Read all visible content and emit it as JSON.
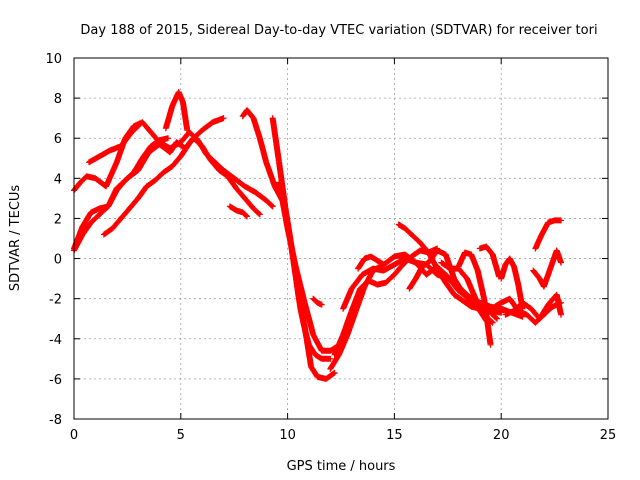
{
  "chart_data": {
    "type": "scatter",
    "title": "Day 188 of 2015, Sidereal Day-to-day VTEC variation (SDTVAR) for receiver tori",
    "xlabel": "GPS time / hours",
    "ylabel": "SDTVAR / TECUs",
    "xlim": [
      0,
      25
    ],
    "ylim": [
      -8,
      10
    ],
    "xticks": [
      0,
      5,
      10,
      15,
      20,
      25
    ],
    "yticks": [
      -8,
      -6,
      -4,
      -2,
      0,
      2,
      4,
      6,
      8,
      10
    ],
    "xtick_labels": [
      "0",
      "5",
      "10",
      "15",
      "20",
      "25"
    ],
    "ytick_labels": [
      "-8",
      "-6",
      "-4",
      "-2",
      "0",
      "2",
      "4",
      "6",
      "8",
      "10"
    ],
    "grid": true,
    "marker": "plus",
    "color": "#ff0000",
    "series": [
      {
        "x": [
          0.0,
          0.3,
          0.6,
          1.0,
          1.5,
          2.0,
          2.4,
          2.8,
          3.2,
          3.6,
          4.0,
          4.5,
          5.0,
          5.4,
          5.8,
          6.2,
          6.6,
          7.0,
          7.5,
          8.0,
          8.5,
          9.0,
          9.3
        ],
        "y": [
          3.4,
          3.8,
          4.1,
          4.0,
          3.6,
          4.8,
          6.0,
          6.6,
          6.8,
          6.3,
          5.8,
          5.5,
          5.8,
          6.3,
          5.9,
          5.2,
          4.8,
          4.4,
          4.0,
          3.6,
          3.3,
          2.9,
          2.6
        ]
      },
      {
        "x": [
          0.0,
          0.4,
          0.8,
          1.2,
          1.6,
          2.0,
          2.5,
          3.0,
          3.5,
          4.0,
          4.5,
          4.8,
          5.2,
          5.6,
          6.0,
          6.4,
          6.8,
          7.2,
          7.6,
          8.0,
          8.4,
          8.7
        ],
        "y": [
          0.5,
          1.6,
          2.3,
          2.5,
          2.6,
          3.5,
          4.0,
          4.4,
          5.3,
          5.7,
          5.3,
          5.8,
          5.5,
          6.0,
          5.6,
          4.9,
          4.4,
          4.1,
          3.5,
          3.0,
          2.5,
          2.2
        ]
      },
      {
        "x": [
          0.0,
          0.4,
          0.8,
          1.2,
          1.6,
          2.0,
          2.4,
          2.8,
          3.2,
          3.6,
          4.0,
          4.4
        ],
        "y": [
          0.4,
          1.2,
          1.8,
          2.2,
          2.6,
          3.4,
          3.9,
          4.3,
          5.0,
          5.6,
          5.9,
          6.0
        ]
      },
      {
        "x": [
          1.4,
          1.8,
          2.2,
          2.6,
          3.0,
          3.4,
          3.8,
          4.2,
          4.6,
          5.0,
          5.5,
          6.0,
          6.5,
          7.0
        ],
        "y": [
          1.2,
          1.5,
          2.0,
          2.5,
          3.0,
          3.6,
          3.9,
          4.3,
          4.6,
          5.1,
          5.9,
          6.4,
          6.8,
          7.0
        ]
      },
      {
        "x": [
          0.7,
          1.2,
          1.7,
          2.2,
          2.7,
          3.0
        ],
        "y": [
          4.8,
          5.1,
          5.4,
          5.6,
          6.3,
          6.6
        ]
      },
      {
        "x": [
          4.3,
          4.6,
          4.9,
          5.1,
          5.3
        ],
        "y": [
          6.5,
          7.6,
          8.3,
          7.8,
          6.4
        ]
      },
      {
        "x": [
          7.3,
          7.6,
          7.9,
          8.1
        ],
        "y": [
          2.6,
          2.4,
          2.3,
          2.1
        ]
      },
      {
        "x": [
          7.9,
          8.1,
          8.4,
          8.7,
          9.0,
          9.4,
          9.8,
          10.0,
          10.2,
          10.4,
          10.6,
          10.8,
          11.0,
          11.3,
          11.6,
          12.0
        ],
        "y": [
          7.1,
          7.4,
          7.0,
          6.0,
          4.8,
          3.6,
          2.8,
          1.8,
          0.4,
          -1.0,
          -2.5,
          -3.5,
          -4.3,
          -4.8,
          -5.0,
          -5.0
        ]
      },
      {
        "x": [
          9.3,
          9.6,
          9.9,
          10.2,
          10.5,
          10.8,
          11.1,
          11.4,
          11.8,
          12.2
        ],
        "y": [
          7.0,
          4.8,
          2.5,
          0.5,
          -1.8,
          -3.4,
          -5.4,
          -5.9,
          -6.0,
          -5.7
        ]
      },
      {
        "x": [
          9.6,
          10.0,
          10.4,
          10.8,
          11.2,
          11.6,
          12.0,
          12.3
        ],
        "y": [
          3.8,
          1.5,
          -0.5,
          -2.2,
          -3.8,
          -4.6,
          -4.6,
          -4.4
        ]
      },
      {
        "x": [
          11.2,
          11.4,
          11.6
        ],
        "y": [
          -2.0,
          -2.2,
          -2.3
        ]
      },
      {
        "x": [
          12.0,
          12.4,
          12.8,
          13.2,
          13.6,
          14.0,
          14.5,
          15.0,
          15.5,
          16.0,
          16.5,
          17.0,
          17.5,
          18.0,
          18.5,
          19.0,
          19.5,
          20.0
        ],
        "y": [
          -5.5,
          -4.8,
          -3.8,
          -2.6,
          -1.4,
          -0.6,
          -0.3,
          0.1,
          0.2,
          -0.2,
          -0.8,
          -0.4,
          -0.9,
          -1.6,
          -2.0,
          -2.4,
          -2.6,
          -2.7
        ]
      },
      {
        "x": [
          12.2,
          12.6,
          13.0,
          13.4,
          13.8,
          14.2,
          14.6,
          15.0,
          15.4,
          15.8,
          16.2,
          16.6,
          17.0,
          17.4,
          17.8,
          18.2,
          18.6,
          19.0,
          19.4,
          19.8
        ],
        "y": [
          -4.8,
          -3.8,
          -2.6,
          -1.5,
          -1.1,
          -1.3,
          -1.2,
          -0.8,
          -0.3,
          0.1,
          0.4,
          0.3,
          -0.5,
          -1.2,
          -1.8,
          -2.1,
          -2.4,
          -2.5,
          -2.6,
          -3.0
        ]
      },
      {
        "x": [
          12.6,
          13.0,
          13.5,
          14.0,
          14.5,
          15.0,
          15.5,
          16.0,
          16.5,
          17.0,
          17.5,
          18.0,
          18.5,
          19.0,
          19.5,
          20.0,
          20.5,
          21.0
        ],
        "y": [
          -2.5,
          -1.5,
          -0.8,
          -0.5,
          -0.6,
          -0.3,
          0.0,
          -0.2,
          -0.3,
          -0.8,
          -1.0,
          -1.4,
          -1.9,
          -2.2,
          -2.4,
          -2.5,
          -2.7,
          -2.9
        ]
      },
      {
        "x": [
          13.3,
          13.6,
          13.9,
          14.2,
          14.5
        ],
        "y": [
          -0.5,
          0.0,
          0.1,
          -0.1,
          -0.3
        ]
      },
      {
        "x": [
          15.2,
          15.5,
          15.8,
          16.2,
          16.6,
          17.0
        ],
        "y": [
          1.7,
          1.5,
          1.2,
          0.8,
          0.3,
          0.5
        ]
      },
      {
        "x": [
          15.7,
          16.0,
          16.3,
          16.6,
          17.0,
          17.4,
          17.8,
          18.2,
          18.6,
          19.0,
          19.3
        ],
        "y": [
          -1.5,
          -1.0,
          -0.4,
          -0.2,
          0.4,
          0.2,
          -1.0,
          -1.7,
          -2.2,
          -2.6,
          -3.1
        ]
      },
      {
        "x": [
          17.2,
          17.6,
          18.0,
          18.4,
          18.8,
          19.2,
          19.6
        ],
        "y": [
          -0.2,
          -0.5,
          -0.5,
          -1.0,
          -2.0,
          -2.8,
          -3.2
        ]
      },
      {
        "x": [
          18.0,
          18.3,
          18.6,
          18.9,
          19.2,
          19.5
        ],
        "y": [
          -0.4,
          0.3,
          0.2,
          -0.6,
          -2.0,
          -4.3
        ]
      },
      {
        "x": [
          19.0,
          19.3,
          19.6,
          19.9
        ],
        "y": [
          0.5,
          0.6,
          0.2,
          -0.9
        ]
      },
      {
        "x": [
          19.7,
          20.0,
          20.4,
          20.8,
          21.2,
          21.6,
          22.0,
          22.4,
          22.8
        ],
        "y": [
          -2.4,
          -2.2,
          -2.0,
          -2.6,
          -2.8,
          -3.2,
          -2.8,
          -2.4,
          -2.2
        ]
      },
      {
        "x": [
          20.0,
          20.2,
          20.4,
          20.6,
          20.8,
          21.0
        ],
        "y": [
          -1.0,
          -0.3,
          0.0,
          -0.4,
          -1.3,
          -2.5
        ]
      },
      {
        "x": [
          20.2,
          20.6,
          21.0,
          21.4,
          21.8,
          22.2,
          22.6,
          22.8
        ],
        "y": [
          -2.8,
          -2.6,
          -2.2,
          -2.5,
          -3.0,
          -2.3,
          -1.8,
          -2.8
        ]
      },
      {
        "x": [
          21.5,
          21.8,
          22.0,
          22.3,
          22.6,
          22.8
        ],
        "y": [
          -0.6,
          -1.0,
          -1.4,
          -0.5,
          0.4,
          -0.2
        ]
      },
      {
        "x": [
          21.6,
          21.9,
          22.2,
          22.5,
          22.8
        ],
        "y": [
          0.5,
          1.2,
          1.8,
          1.9,
          1.9
        ]
      }
    ]
  }
}
